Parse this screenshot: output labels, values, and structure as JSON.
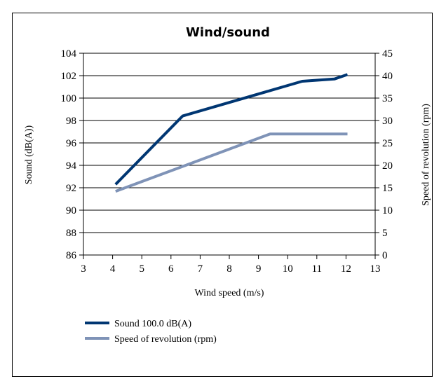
{
  "chart_data": {
    "type": "line",
    "title": "Wind/sound",
    "xlabel": "Wind speed (m/s)",
    "ylabel_left": "Sound (dB(A))",
    "ylabel_right": "Speed of revolution (rpm)",
    "xlim": [
      3,
      13
    ],
    "ylim_left": [
      86,
      104
    ],
    "ylim_right": [
      0,
      45
    ],
    "x_ticks": [
      3,
      4,
      5,
      6,
      7,
      8,
      9,
      10,
      11,
      12,
      13
    ],
    "y_left_ticks": [
      86,
      88,
      90,
      92,
      94,
      96,
      98,
      100,
      102,
      104
    ],
    "y_right_ticks": [
      0,
      5,
      10,
      15,
      20,
      25,
      30,
      35,
      40,
      45
    ],
    "grid": true,
    "legend_position": "bottom-left",
    "series": [
      {
        "name": "Sound 100.0 dB(A)",
        "axis": "left",
        "color": "#003672",
        "points": [
          [
            4.1,
            92.3
          ],
          [
            6.4,
            98.4
          ],
          [
            10.5,
            101.5
          ],
          [
            11.6,
            101.7
          ],
          [
            12.05,
            102.1
          ]
        ]
      },
      {
        "name": "Speed of revolution (rpm)",
        "axis": "right",
        "color": "#7f93b7",
        "points": [
          [
            4.1,
            14.2
          ],
          [
            9.4,
            27.0
          ],
          [
            12.05,
            27.0
          ]
        ]
      }
    ]
  }
}
